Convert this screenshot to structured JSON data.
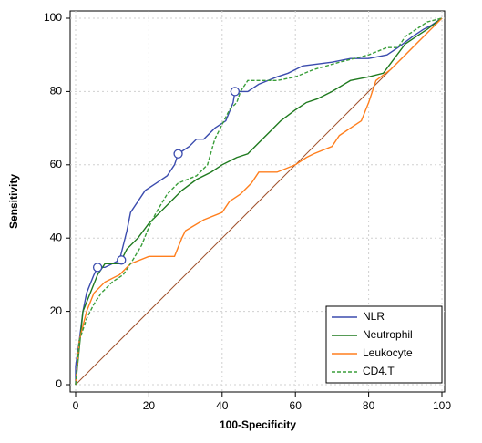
{
  "chart_data": {
    "type": "line",
    "xlabel": "100-Specificity",
    "ylabel": "Sensitivity",
    "xlim": [
      0,
      100
    ],
    "ylim": [
      0,
      100
    ],
    "xticks": [
      0,
      20,
      40,
      60,
      80,
      100
    ],
    "yticks": [
      0,
      20,
      40,
      60,
      80,
      100
    ],
    "grid": true,
    "legend": "lower right",
    "series": [
      {
        "name": "NLR",
        "color": "#3b4cae",
        "line_style": "solid",
        "x": [
          0,
          0,
          1,
          2,
          3,
          5,
          6,
          8,
          10,
          12,
          13,
          14,
          15,
          17,
          19,
          22,
          25,
          27,
          28,
          31,
          33,
          35,
          38,
          41,
          43,
          43.5,
          47,
          50,
          55,
          58,
          62,
          70,
          75,
          80,
          85,
          88,
          92,
          95,
          97,
          100
        ],
        "values": [
          0,
          5,
          12,
          20,
          25,
          30,
          32,
          32,
          33,
          34,
          38,
          42,
          47,
          50,
          53,
          55,
          57,
          60,
          63,
          65,
          67,
          67,
          70,
          72,
          77,
          80,
          80,
          82,
          84,
          85,
          87,
          88,
          89,
          89,
          90,
          92,
          95,
          97,
          98,
          100
        ]
      },
      {
        "name": "Neutrophil",
        "color": "#1f7a1f",
        "line_style": "solid",
        "x": [
          0,
          1,
          2,
          4,
          6,
          8,
          12,
          14,
          17,
          20,
          23,
          26,
          29,
          33,
          37,
          40,
          44,
          47,
          50,
          53,
          56,
          60,
          63,
          66,
          70,
          75,
          80,
          84,
          87,
          90,
          93,
          96,
          100
        ],
        "values": [
          0,
          10,
          20,
          25,
          30,
          33,
          33,
          37,
          40,
          44,
          47,
          50,
          53,
          56,
          58,
          60,
          62,
          63,
          66,
          69,
          72,
          75,
          77,
          78,
          80,
          83,
          84,
          85,
          89,
          93,
          95,
          97,
          100
        ]
      },
      {
        "name": "Leukocyte",
        "color": "#ff7f1e",
        "line_style": "solid",
        "x": [
          0,
          1,
          3,
          5,
          8,
          12,
          15,
          20,
          27,
          29,
          30,
          35,
          40,
          42,
          45,
          48,
          50,
          55,
          60,
          63,
          65,
          70,
          72,
          75,
          78,
          80,
          82,
          86,
          90,
          93,
          97,
          100
        ],
        "values": [
          0,
          12,
          20,
          25,
          28,
          30,
          33,
          35,
          35,
          40,
          42,
          45,
          47,
          50,
          52,
          55,
          58,
          58,
          60,
          62,
          63,
          65,
          68,
          70,
          72,
          77,
          83,
          86,
          90,
          93,
          97,
          100
        ]
      },
      {
        "name": "CD4.T",
        "color": "#3a9e3a",
        "line_style": "dashed",
        "x": [
          0,
          1,
          3,
          5,
          7,
          10,
          13,
          15,
          18,
          20,
          22,
          25,
          28,
          33,
          36,
          38,
          40,
          42,
          44,
          45,
          47,
          55,
          60,
          65,
          72,
          80,
          85,
          88,
          90,
          93,
          96,
          100
        ],
        "values": [
          0,
          12,
          18,
          22,
          25,
          28,
          30,
          33,
          38,
          43,
          47,
          52,
          55,
          57,
          60,
          67,
          71,
          75,
          77,
          80,
          83,
          83,
          84,
          86,
          88,
          90,
          92,
          92,
          95,
          97,
          99,
          100
        ]
      }
    ],
    "criterion_points": {
      "color": "#3b4cae",
      "x": [
        6,
        12.5,
        28,
        43.5
      ],
      "values": [
        32,
        34,
        63,
        80
      ]
    }
  }
}
